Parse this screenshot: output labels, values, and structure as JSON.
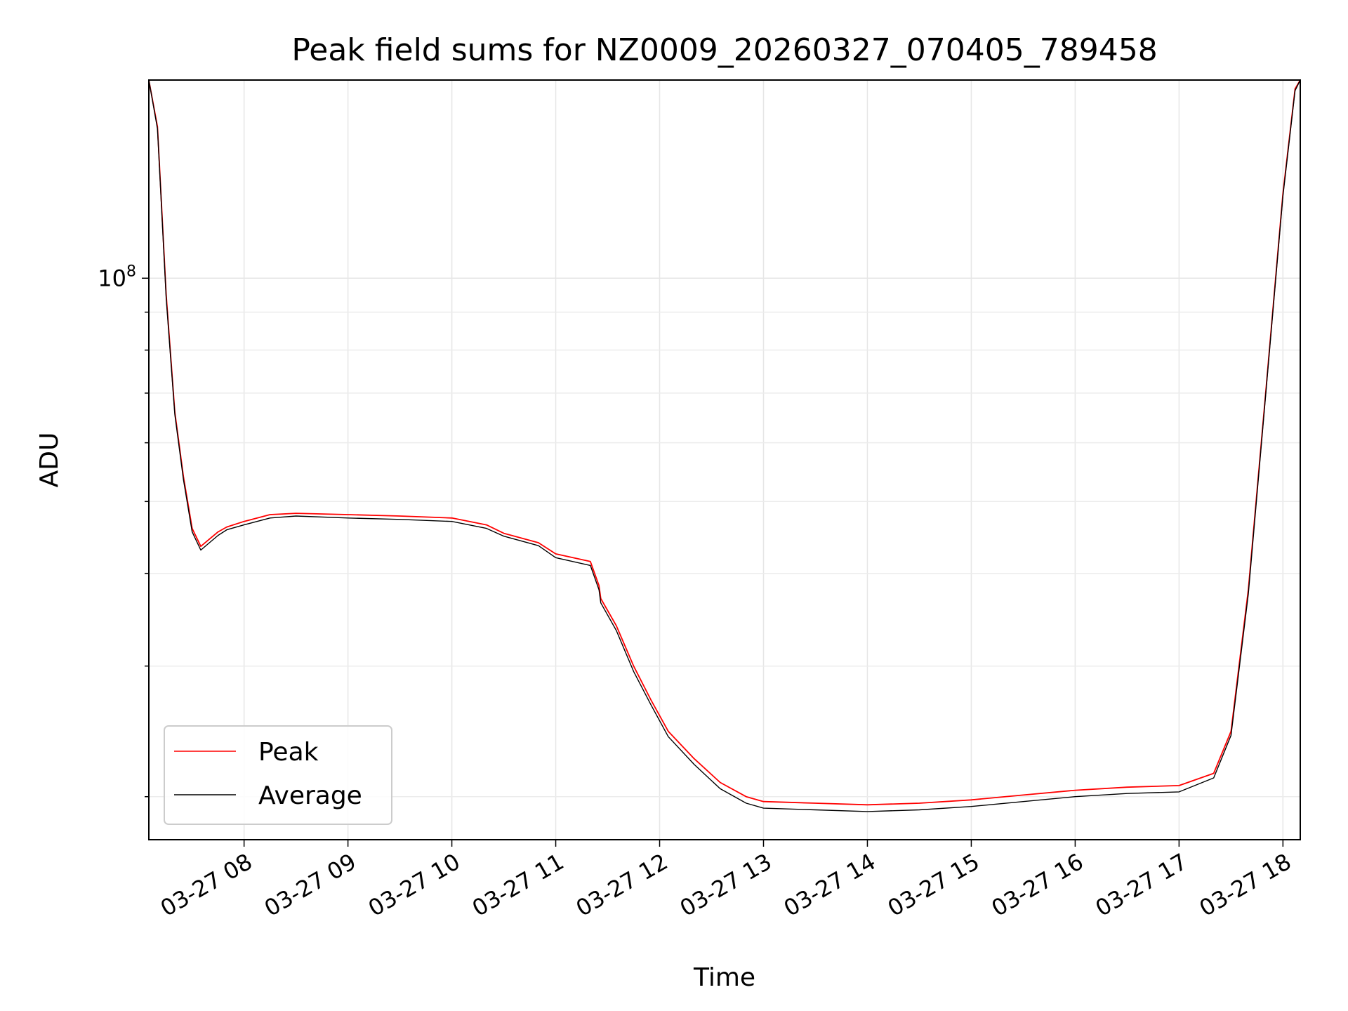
{
  "chart_data": {
    "type": "line",
    "title": "Peak field sums for NZ0009_20260327_070405_789458",
    "xlabel": "Time",
    "ylabel": "ADU",
    "y_scale": "log",
    "grid": "on",
    "legend_placement": "lower-left",
    "xlim": [
      "2026-03-27 07:05",
      "2026-03-27 18:10"
    ],
    "ylim": [
      17500000,
      185000000
    ],
    "x_ticks": [
      "03-27 08",
      "03-27 09",
      "03-27 10",
      "03-27 11",
      "03-27 12",
      "03-27 13",
      "03-27 14",
      "03-27 15",
      "03-27 16",
      "03-27 17",
      "03-27 18"
    ],
    "y_ticks": [
      {
        "value": 100000000,
        "base": "10",
        "exponent": "8"
      }
    ],
    "series": [
      {
        "name": "Peak",
        "color": "#ff0000",
        "x": [
          "2026-03-27 07:05",
          "2026-03-27 07:10",
          "2026-03-27 07:15",
          "2026-03-27 07:20",
          "2026-03-27 07:25",
          "2026-03-27 07:30",
          "2026-03-27 07:35",
          "2026-03-27 07:40",
          "2026-03-27 07:45",
          "2026-03-27 07:50",
          "2026-03-27 08:00",
          "2026-03-27 08:15",
          "2026-03-27 08:30",
          "2026-03-27 09:00",
          "2026-03-27 09:30",
          "2026-03-27 10:00",
          "2026-03-27 10:20",
          "2026-03-27 10:30",
          "2026-03-27 10:50",
          "2026-03-27 11:00",
          "2026-03-27 11:20",
          "2026-03-27 11:25",
          "2026-03-27 11:26",
          "2026-03-27 11:35",
          "2026-03-27 11:45",
          "2026-03-27 11:55",
          "2026-03-27 12:05",
          "2026-03-27 12:20",
          "2026-03-27 12:35",
          "2026-03-27 12:50",
          "2026-03-27 13:00",
          "2026-03-27 13:30",
          "2026-03-27 14:00",
          "2026-03-27 14:30",
          "2026-03-27 15:00",
          "2026-03-27 15:30",
          "2026-03-27 16:00",
          "2026-03-27 16:30",
          "2026-03-27 17:00",
          "2026-03-27 17:20",
          "2026-03-27 17:30",
          "2026-03-27 17:40",
          "2026-03-27 17:50",
          "2026-03-27 18:00",
          "2026-03-27 18:07",
          "2026-03-27 18:10"
        ],
        "y": [
          185000000,
          160000000,
          95000000,
          66000000,
          54000000,
          46000000,
          43500000,
          44500000,
          45500000,
          46200000,
          47000000,
          48000000,
          48200000,
          48000000,
          47800000,
          47500000,
          46500000,
          45300000,
          44000000,
          42500000,
          41500000,
          38500000,
          37000000,
          34000000,
          30000000,
          27000000,
          24500000,
          22500000,
          20900000,
          20000000,
          19700000,
          19600000,
          19500000,
          19600000,
          19800000,
          20100000,
          20400000,
          20600000,
          20700000,
          21500000,
          24500000,
          38000000,
          70000000,
          130000000,
          180000000,
          185000000
        ]
      },
      {
        "name": "Average",
        "color": "#000000",
        "x": [
          "2026-03-27 07:05",
          "2026-03-27 07:10",
          "2026-03-27 07:15",
          "2026-03-27 07:20",
          "2026-03-27 07:25",
          "2026-03-27 07:30",
          "2026-03-27 07:35",
          "2026-03-27 07:40",
          "2026-03-27 07:45",
          "2026-03-27 07:50",
          "2026-03-27 08:00",
          "2026-03-27 08:15",
          "2026-03-27 08:30",
          "2026-03-27 09:00",
          "2026-03-27 09:30",
          "2026-03-27 10:00",
          "2026-03-27 10:20",
          "2026-03-27 10:30",
          "2026-03-27 10:50",
          "2026-03-27 11:00",
          "2026-03-27 11:20",
          "2026-03-27 11:25",
          "2026-03-27 11:26",
          "2026-03-27 11:35",
          "2026-03-27 11:45",
          "2026-03-27 11:55",
          "2026-03-27 12:05",
          "2026-03-27 12:20",
          "2026-03-27 12:35",
          "2026-03-27 12:50",
          "2026-03-27 13:00",
          "2026-03-27 13:30",
          "2026-03-27 14:00",
          "2026-03-27 14:30",
          "2026-03-27 15:00",
          "2026-03-27 15:30",
          "2026-03-27 16:00",
          "2026-03-27 16:30",
          "2026-03-27 17:00",
          "2026-03-27 17:20",
          "2026-03-27 17:30",
          "2026-03-27 17:40",
          "2026-03-27 17:50",
          "2026-03-27 18:00",
          "2026-03-27 18:07",
          "2026-03-27 18:10"
        ],
        "y": [
          185000000,
          159000000,
          94000000,
          65500000,
          53500000,
          45500000,
          43000000,
          44000000,
          45000000,
          45800000,
          46500000,
          47500000,
          47800000,
          47500000,
          47300000,
          47000000,
          46000000,
          44900000,
          43600000,
          42000000,
          41000000,
          38000000,
          36500000,
          33500000,
          29500000,
          26600000,
          24100000,
          22100000,
          20500000,
          19600000,
          19300000,
          19200000,
          19100000,
          19200000,
          19400000,
          19700000,
          20000000,
          20200000,
          20300000,
          21200000,
          24200000,
          37500000,
          69500000,
          129000000,
          179000000,
          185000000
        ]
      }
    ]
  }
}
